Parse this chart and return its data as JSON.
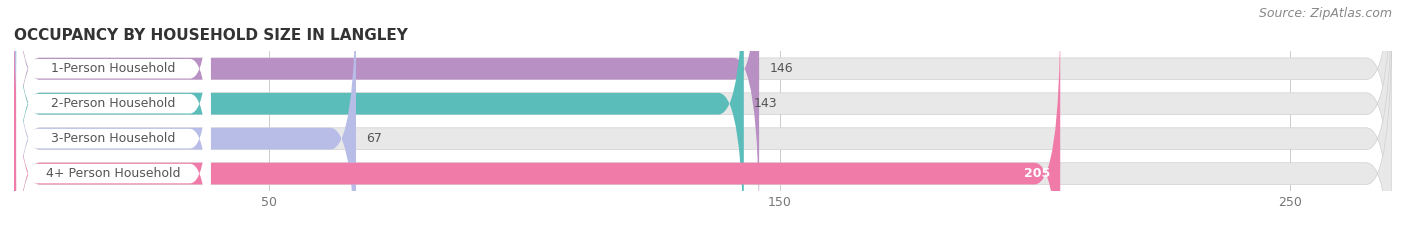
{
  "title": "OCCUPANCY BY HOUSEHOLD SIZE IN LANGLEY",
  "source": "Source: ZipAtlas.com",
  "categories": [
    "1-Person Household",
    "2-Person Household",
    "3-Person Household",
    "4+ Person Household"
  ],
  "values": [
    146,
    143,
    67,
    205
  ],
  "colors": [
    "#b990c4",
    "#5bbdba",
    "#b8bde8",
    "#f07aa8"
  ],
  "bar_bg_color": "#e8e8e8",
  "xlim_data": [
    0,
    270
  ],
  "xticks": [
    50,
    150,
    250
  ],
  "value_label_color": "#555555",
  "value_label_color_inside": "#ffffff",
  "title_color": "#333333",
  "background_color": "#ffffff",
  "bar_height": 0.62,
  "label_box_color": "#ffffff",
  "label_text_color": "#555555",
  "label_fontsize": 9,
  "title_fontsize": 11,
  "source_fontsize": 9,
  "value_fontsize": 9
}
